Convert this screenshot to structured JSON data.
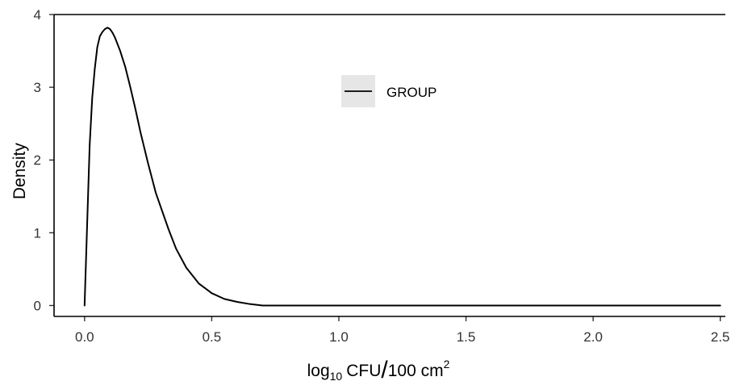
{
  "chart_data": {
    "type": "line",
    "ylabel": "Density",
    "xlabel": {
      "base": "log",
      "base_subscript": "10",
      "mid": "CFU",
      "slash": "/",
      "unit": "100 cm",
      "unit_superscript": "2"
    },
    "xlim": [
      -0.12,
      2.52
    ],
    "ylim": [
      -0.15,
      4.0
    ],
    "x_ticks": [
      0.0,
      0.5,
      1.0,
      1.5,
      2.0,
      2.5
    ],
    "x_tick_labels": [
      "0.0",
      "0.5",
      "1.0",
      "1.5",
      "2.0",
      "2.5"
    ],
    "y_ticks": [
      0,
      1,
      2,
      3,
      4
    ],
    "y_tick_labels": [
      "0",
      "1",
      "2",
      "3",
      "4"
    ],
    "grid": false,
    "legend_position": "top-center",
    "series": [
      {
        "name": "GROUP",
        "color": "#000000",
        "x": [
          0.0,
          0.01,
          0.02,
          0.03,
          0.04,
          0.05,
          0.06,
          0.07,
          0.08,
          0.09,
          0.1,
          0.11,
          0.12,
          0.14,
          0.16,
          0.18,
          0.2,
          0.22,
          0.25,
          0.28,
          0.3,
          0.33,
          0.36,
          0.4,
          0.45,
          0.5,
          0.55,
          0.6,
          0.65,
          0.7,
          0.8,
          1.0,
          1.5,
          2.0,
          2.5
        ],
        "y": [
          0.0,
          1.1,
          2.2,
          2.85,
          3.25,
          3.55,
          3.7,
          3.76,
          3.8,
          3.82,
          3.8,
          3.75,
          3.68,
          3.5,
          3.28,
          3.0,
          2.7,
          2.38,
          1.95,
          1.55,
          1.35,
          1.05,
          0.78,
          0.52,
          0.3,
          0.17,
          0.09,
          0.05,
          0.02,
          0.0,
          0.0,
          0.0,
          0.0,
          0.0,
          0.0
        ]
      }
    ]
  }
}
